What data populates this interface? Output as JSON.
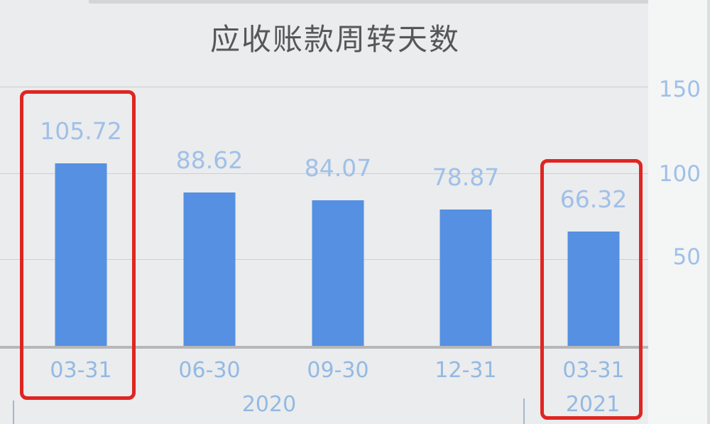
{
  "chart_data": {
    "type": "bar",
    "title": "应收账款周转天数",
    "categories": [
      "03-31",
      "06-30",
      "09-30",
      "12-31",
      "03-31"
    ],
    "year_labels": [
      "2020",
      "2021"
    ],
    "values": [
      105.72,
      88.62,
      84.07,
      78.87,
      66.32
    ],
    "value_labels": [
      "105.72",
      "88.62",
      "84.07",
      "78.87",
      "66.32"
    ],
    "ytick_labels": [
      "150",
      "100",
      "50"
    ],
    "ylim": [
      0,
      150
    ],
    "yaxis_position": "right",
    "grid": true,
    "legend": "none",
    "bar_color": "#5590e3",
    "value_label_color": "#a0c0e8",
    "tick_label_color": "#93b9e4",
    "title_color": "#565858",
    "highlight_color": "#e02521",
    "highlighted_bars": [
      0,
      4
    ],
    "highlighted_periods": [
      "2020 03-31",
      "2021 03-31"
    ]
  }
}
